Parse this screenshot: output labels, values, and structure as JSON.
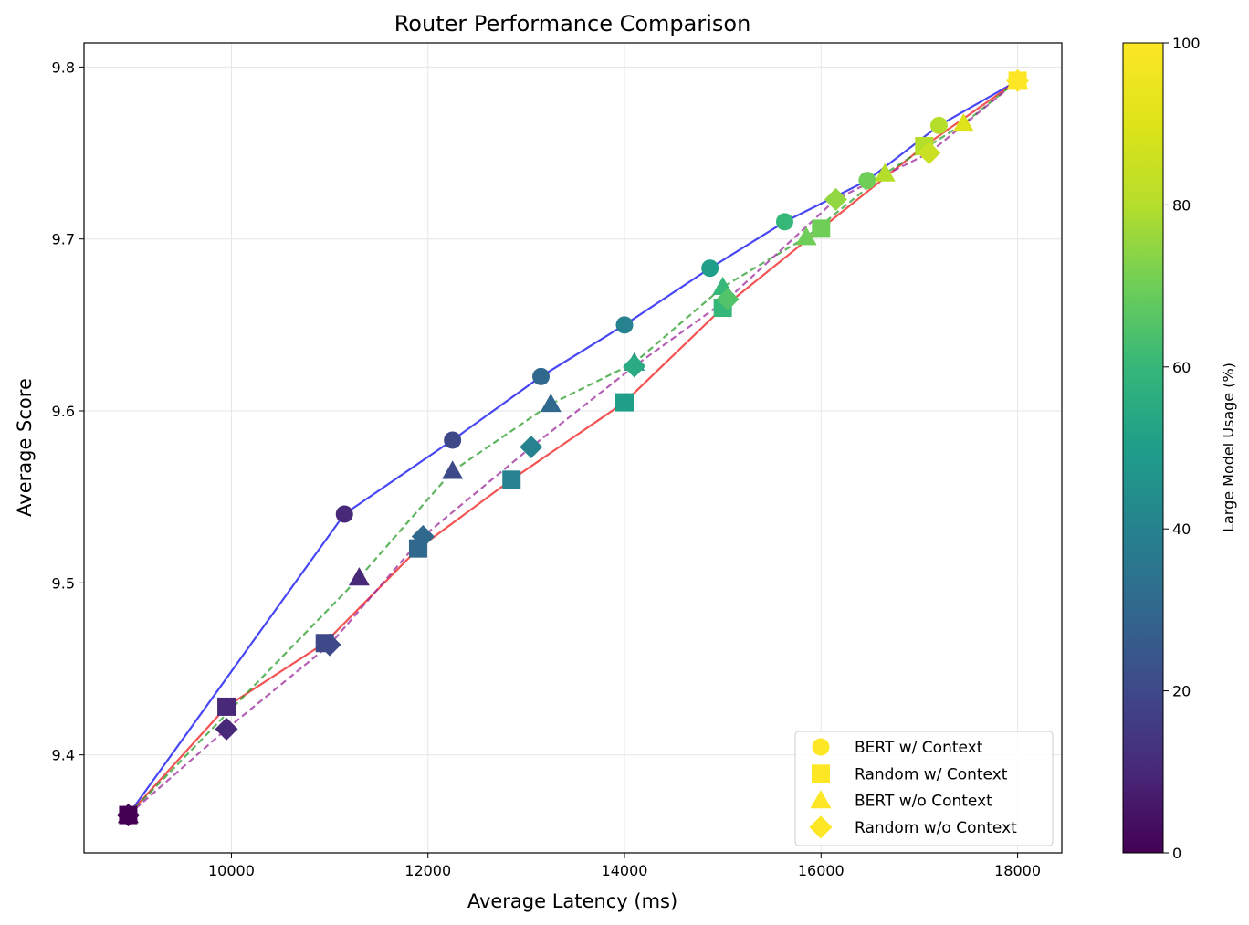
{
  "chart_data": {
    "type": "scatter",
    "title": "Router Performance Comparison",
    "xlabel": "Average Latency (ms)",
    "ylabel": "Average Score",
    "xlim": [
      8500,
      18450
    ],
    "ylim": [
      9.343,
      9.814
    ],
    "x_ticks": [
      10000,
      12000,
      14000,
      16000,
      18000
    ],
    "y_ticks": [
      9.4,
      9.5,
      9.6,
      9.7,
      9.8
    ],
    "grid": true,
    "legend_position": "lower-right",
    "colorbar": {
      "label": "Large Model Usage (%)",
      "range": [
        0,
        100
      ],
      "ticks": [
        0,
        20,
        40,
        60,
        80,
        100
      ]
    },
    "series": [
      {
        "name": "BERT w/ Context",
        "marker": "circle",
        "line_color": "#0000ee",
        "line_style": "solid",
        "points": [
          {
            "x": 8950,
            "y": 9.365,
            "usage": 0
          },
          {
            "x": 11150,
            "y": 9.54,
            "usage": 10
          },
          {
            "x": 12250,
            "y": 9.583,
            "usage": 20
          },
          {
            "x": 13150,
            "y": 9.62,
            "usage": 30
          },
          {
            "x": 14000,
            "y": 9.65,
            "usage": 40
          },
          {
            "x": 14870,
            "y": 9.683,
            "usage": 50
          },
          {
            "x": 15630,
            "y": 9.71,
            "usage": 60
          },
          {
            "x": 16470,
            "y": 9.734,
            "usage": 70
          },
          {
            "x": 17200,
            "y": 9.766,
            "usage": 80
          },
          {
            "x": 18000,
            "y": 9.792,
            "usage": 100
          }
        ]
      },
      {
        "name": "Random w/ Context",
        "marker": "square",
        "line_color": "#ee1111",
        "line_style": "solid",
        "points": [
          {
            "x": 8950,
            "y": 9.365,
            "usage": 0
          },
          {
            "x": 9950,
            "y": 9.428,
            "usage": 10
          },
          {
            "x": 10950,
            "y": 9.465,
            "usage": 20
          },
          {
            "x": 11900,
            "y": 9.52,
            "usage": 30
          },
          {
            "x": 12850,
            "y": 9.56,
            "usage": 40
          },
          {
            "x": 14000,
            "y": 9.605,
            "usage": 50
          },
          {
            "x": 15000,
            "y": 9.66,
            "usage": 60
          },
          {
            "x": 16000,
            "y": 9.706,
            "usage": 70
          },
          {
            "x": 17050,
            "y": 9.754,
            "usage": 80
          },
          {
            "x": 18000,
            "y": 9.792,
            "usage": 100
          }
        ]
      },
      {
        "name": "BERT w/o Context",
        "marker": "triangle",
        "line_color": "#229922",
        "line_style": "dashed",
        "points": [
          {
            "x": 8950,
            "y": 9.365,
            "usage": 0
          },
          {
            "x": 11300,
            "y": 9.503,
            "usage": 10
          },
          {
            "x": 12250,
            "y": 9.565,
            "usage": 20
          },
          {
            "x": 13250,
            "y": 9.604,
            "usage": 30
          },
          {
            "x": 14100,
            "y": 9.628,
            "usage": 45
          },
          {
            "x": 15000,
            "y": 9.672,
            "usage": 60
          },
          {
            "x": 15850,
            "y": 9.701,
            "usage": 70
          },
          {
            "x": 16650,
            "y": 9.738,
            "usage": 80
          },
          {
            "x": 17450,
            "y": 9.767,
            "usage": 90
          },
          {
            "x": 18000,
            "y": 9.792,
            "usage": 100
          }
        ]
      },
      {
        "name": "Random w/o Context",
        "marker": "diamond",
        "line_color": "#992299",
        "line_style": "dashed",
        "points": [
          {
            "x": 8950,
            "y": 9.365,
            "usage": 0
          },
          {
            "x": 9950,
            "y": 9.415,
            "usage": 10
          },
          {
            "x": 11000,
            "y": 9.464,
            "usage": 20
          },
          {
            "x": 11950,
            "y": 9.527,
            "usage": 30
          },
          {
            "x": 13050,
            "y": 9.579,
            "usage": 40
          },
          {
            "x": 14100,
            "y": 9.626,
            "usage": 55
          },
          {
            "x": 15050,
            "y": 9.665,
            "usage": 65
          },
          {
            "x": 16150,
            "y": 9.723,
            "usage": 75
          },
          {
            "x": 17100,
            "y": 9.75,
            "usage": 85
          },
          {
            "x": 18000,
            "y": 9.792,
            "usage": 100
          }
        ]
      }
    ]
  }
}
